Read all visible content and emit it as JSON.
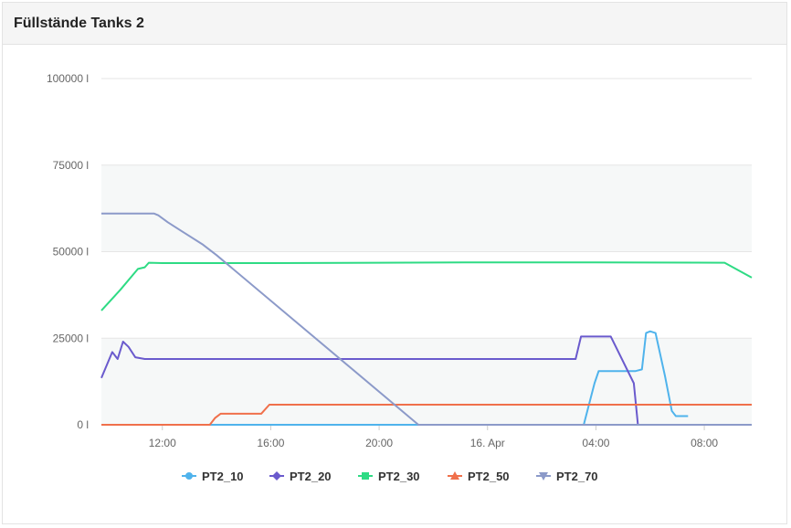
{
  "panel": {
    "title": "Füllstände Tanks 2"
  },
  "chart_data": {
    "type": "line",
    "title": "",
    "xlabel": "",
    "ylabel": "",
    "ylim": [
      0,
      100000
    ],
    "y_ticks": [
      0,
      25000,
      50000,
      75000,
      100000
    ],
    "y_tick_labels": [
      "0 l",
      "25000 l",
      "50000 l",
      "75000 l",
      "100000 l"
    ],
    "xlim": [
      9.75,
      33.75
    ],
    "x_ticks": [
      12,
      16,
      20,
      24,
      28,
      32
    ],
    "x_tick_labels": [
      "12:00",
      "16:00",
      "20:00",
      "16. Apr",
      "04:00",
      "08:00"
    ],
    "legend_position": "bottom",
    "series": [
      {
        "name": "PT2_10",
        "color": "#4fb3ec",
        "marker": "circle",
        "points": [
          [
            9.75,
            0
          ],
          [
            27.55,
            0
          ],
          [
            27.75,
            6000
          ],
          [
            27.95,
            12000
          ],
          [
            28.1,
            15500
          ],
          [
            29.45,
            15500
          ],
          [
            29.7,
            16000
          ],
          [
            29.85,
            26500
          ],
          [
            30.0,
            27000
          ],
          [
            30.2,
            26500
          ],
          [
            30.55,
            14000
          ],
          [
            30.8,
            4000
          ],
          [
            30.95,
            2500
          ],
          [
            31.4,
            2500
          ]
        ]
      },
      {
        "name": "PT2_20",
        "color": "#6a5acd",
        "marker": "diamond",
        "points": [
          [
            9.75,
            13500
          ],
          [
            10.15,
            21000
          ],
          [
            10.35,
            19000
          ],
          [
            10.55,
            24000
          ],
          [
            10.75,
            22500
          ],
          [
            11.0,
            19500
          ],
          [
            11.35,
            19000
          ],
          [
            27.25,
            19000
          ],
          [
            27.45,
            25500
          ],
          [
            28.55,
            25500
          ],
          [
            29.4,
            12000
          ],
          [
            29.55,
            0
          ],
          [
            33.75,
            0
          ]
        ]
      },
      {
        "name": "PT2_30",
        "color": "#2edb84",
        "marker": "square",
        "points": [
          [
            9.75,
            33000
          ],
          [
            10.45,
            39000
          ],
          [
            11.1,
            45000
          ],
          [
            11.35,
            45500
          ],
          [
            11.5,
            46800
          ],
          [
            12.0,
            46700
          ],
          [
            16.0,
            46700
          ],
          [
            20.0,
            46800
          ],
          [
            24.0,
            46900
          ],
          [
            28.0,
            46900
          ],
          [
            32.75,
            46800
          ],
          [
            33.75,
            42500
          ]
        ]
      },
      {
        "name": "PT2_50",
        "color": "#f0704b",
        "marker": "triangle",
        "points": [
          [
            9.75,
            0
          ],
          [
            13.75,
            0
          ],
          [
            13.95,
            2000
          ],
          [
            14.15,
            3200
          ],
          [
            15.65,
            3200
          ],
          [
            15.95,
            5800
          ],
          [
            33.75,
            5800
          ]
        ]
      },
      {
        "name": "PT2_70",
        "color": "#8c9ac9",
        "marker": "triangle-down",
        "points": [
          [
            9.75,
            61000
          ],
          [
            11.7,
            61000
          ],
          [
            11.85,
            60500
          ],
          [
            12.2,
            58500
          ],
          [
            12.8,
            55500
          ],
          [
            13.5,
            52000
          ],
          [
            14.0,
            49000
          ],
          [
            21.45,
            0
          ],
          [
            33.75,
            0
          ]
        ]
      }
    ]
  }
}
